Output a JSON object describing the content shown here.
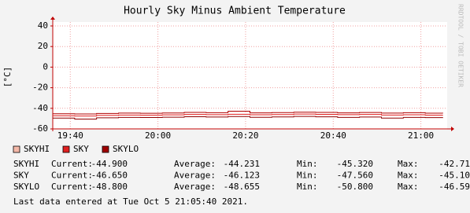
{
  "chart_data": {
    "type": "line",
    "title": "Hourly Sky Minus Ambient Temperature",
    "y_label": "[°C]",
    "watermark": "RRDTOOL / TOBI OETIKER",
    "x": [
      "19:36",
      "19:41",
      "19:46",
      "19:51",
      "19:56",
      "20:01",
      "20:06",
      "20:11",
      "20:16",
      "20:21",
      "20:26",
      "20:31",
      "20:36",
      "20:41",
      "20:46",
      "20:51",
      "20:56",
      "21:01",
      "21:05"
    ],
    "xlim": [
      "19:36",
      "21:06"
    ],
    "xticks": [
      "19:40",
      "20:00",
      "20:20",
      "20:40",
      "21:00"
    ],
    "ylim": [
      -60,
      40
    ],
    "yticks": [
      -60,
      -40,
      -20,
      0,
      20,
      40
    ],
    "grid": true,
    "step": true,
    "series": [
      {
        "name": "SKYHI",
        "color": "#f4b8a8",
        "line_color": "#b00000",
        "values": [
          -45.3,
          -45.5,
          -45.0,
          -44.6,
          -44.8,
          -44.5,
          -44.0,
          -44.3,
          -42.8,
          -44.4,
          -44.2,
          -43.8,
          -44.0,
          -44.4,
          -44.1,
          -44.6,
          -44.3,
          -44.7,
          -44.9
        ]
      },
      {
        "name": "SKY",
        "color": "#e02020",
        "line_color": "#e02020",
        "values": [
          -47.2,
          -47.5,
          -46.8,
          -46.5,
          -46.6,
          -46.4,
          -46.0,
          -46.2,
          -45.8,
          -46.3,
          -46.1,
          -45.6,
          -45.9,
          -46.2,
          -46.0,
          -46.5,
          -46.3,
          -46.6,
          -46.65
        ]
      },
      {
        "name": "SKYLO",
        "color": "#a00000",
        "line_color": "#900000",
        "values": [
          -49.5,
          -50.5,
          -49.2,
          -48.8,
          -48.9,
          -48.6,
          -48.2,
          -48.5,
          -48.0,
          -48.7,
          -48.4,
          -47.9,
          -48.3,
          -48.8,
          -48.5,
          -49.5,
          -48.8,
          -49.0,
          -48.8
        ]
      }
    ]
  },
  "stats": {
    "labels": [
      "Current:",
      "Average:",
      "Min:",
      "Max:"
    ],
    "rows": [
      [
        "-44.900",
        "-44.231",
        "-45.320",
        "-42.71"
      ],
      [
        "-46.650",
        "-46.123",
        "-47.560",
        "-45.10"
      ],
      [
        "-48.800",
        "-48.655",
        "-50.800",
        "-46.59"
      ]
    ]
  },
  "footer": "Last data entered at Tue Oct  5 21:05:40 2021."
}
